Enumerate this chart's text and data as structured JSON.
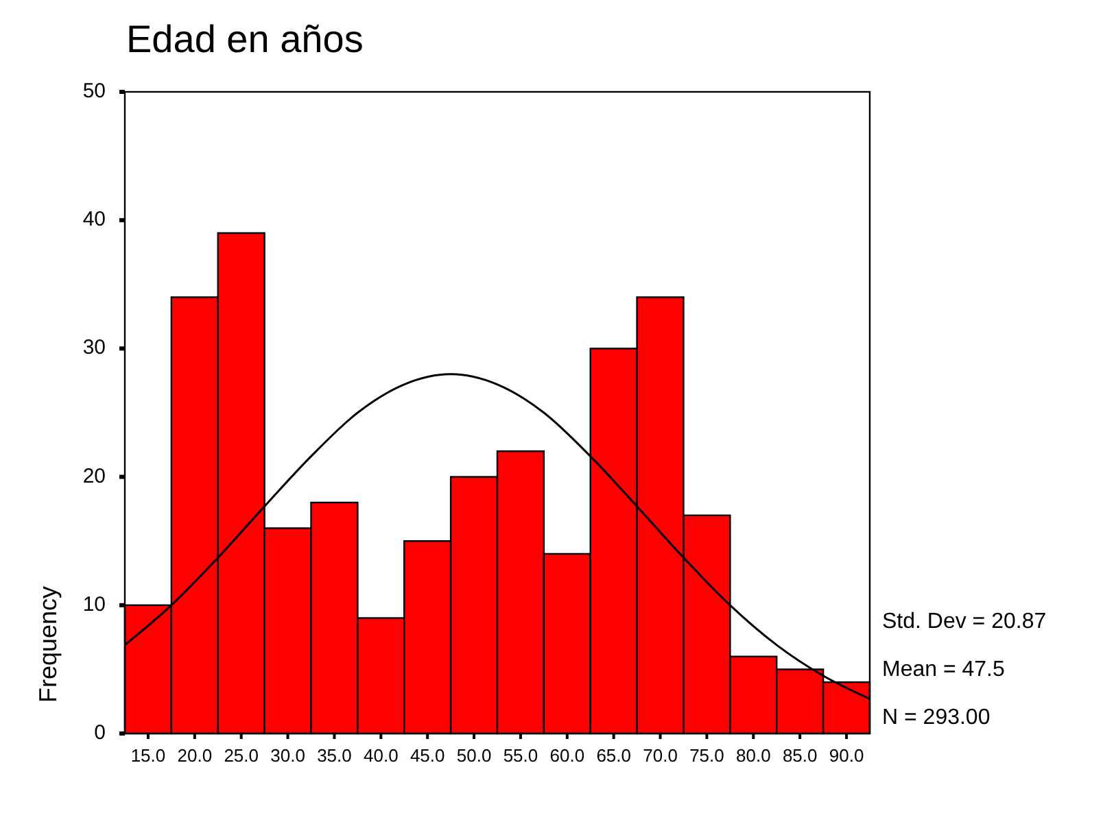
{
  "chart_data": {
    "type": "histogram",
    "title": "Edad en años",
    "ylabel": "Frequency",
    "bins": [
      12.5,
      17.5,
      22.5,
      27.5,
      32.5,
      37.5,
      42.5,
      47.5,
      52.5,
      57.5,
      62.5,
      67.5,
      72.5,
      77.5,
      82.5,
      87.5,
      92.5
    ],
    "values": [
      10,
      34,
      39,
      16,
      18,
      9,
      15,
      20,
      22,
      14,
      30,
      34,
      17,
      6,
      5,
      4
    ],
    "color": "#ff0000",
    "series": [
      {
        "type": "line",
        "color": "#000000",
        "x": [
          12.5,
          17.5,
          22.5,
          27.5,
          32.5,
          37.5,
          42.5,
          47.5,
          52.5,
          57.5,
          62.5,
          67.5,
          72.5,
          77.5,
          82.5,
          87.5,
          92.5
        ],
        "values": [
          6.9,
          10.0,
          13.7,
          17.7,
          21.6,
          25.0,
          27.2,
          28.0,
          27.2,
          25.0,
          21.6,
          17.7,
          13.7,
          10.0,
          6.9,
          4.5,
          2.7
        ]
      }
    ],
    "xlim": [
      12.5,
      92.5
    ],
    "xticks": [
      {
        "value": 15,
        "label": "15.0"
      },
      {
        "value": 20,
        "label": "20.0"
      },
      {
        "value": 25,
        "label": "25.0"
      },
      {
        "value": 30,
        "label": "30.0"
      },
      {
        "value": 35,
        "label": "35.0"
      },
      {
        "value": 40,
        "label": "40.0"
      },
      {
        "value": 45,
        "label": "45.0"
      },
      {
        "value": 50,
        "label": "50.0"
      },
      {
        "value": 55,
        "label": "55.0"
      },
      {
        "value": 60,
        "label": "60.0"
      },
      {
        "value": 65,
        "label": "65.0"
      },
      {
        "value": 70,
        "label": "70.0"
      },
      {
        "value": 75,
        "label": "75.0"
      },
      {
        "value": 80,
        "label": "80.0"
      },
      {
        "value": 85,
        "label": "85.0"
      },
      {
        "value": 90,
        "label": "90.0"
      }
    ],
    "ylim": [
      0,
      50
    ],
    "yticks": [
      0,
      10,
      20,
      30,
      40,
      50
    ],
    "annotations": [
      "Std. Dev = 20.87",
      "Mean = 47.5",
      "N = 293.00"
    ]
  }
}
